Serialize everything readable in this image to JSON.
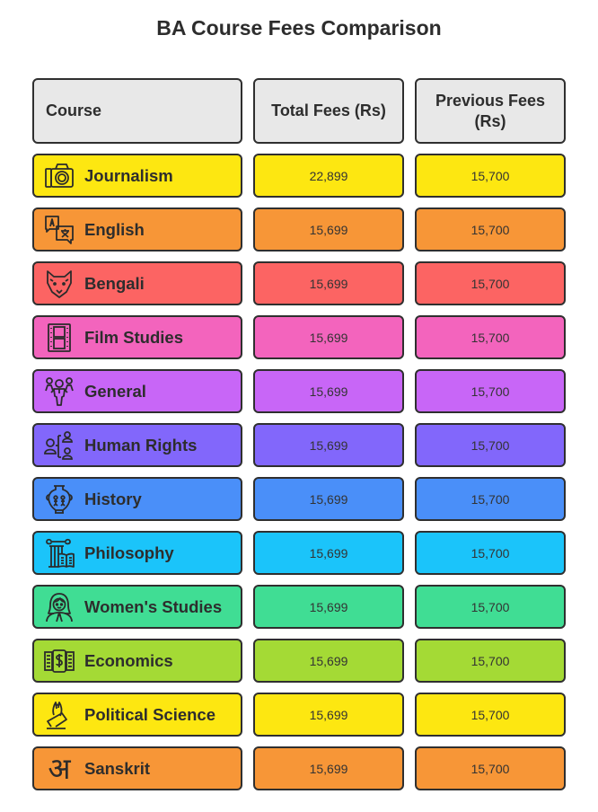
{
  "title": "BA Course Fees Comparison",
  "header": {
    "course": "Course",
    "total_fees": "Total Fees (Rs)",
    "previous_fees": "Previous Fees (Rs)"
  },
  "rows": [
    {
      "course": "Journalism",
      "icon": "camera-icon",
      "total_fees": "22,899",
      "previous_fees": "15,700",
      "color": "#fde711"
    },
    {
      "course": "English",
      "icon": "translate-icon",
      "total_fees": "15,699",
      "previous_fees": "15,700",
      "color": "#f79637"
    },
    {
      "course": "Bengali",
      "icon": "tiger-icon",
      "total_fees": "15,699",
      "previous_fees": "15,700",
      "color": "#fc6463"
    },
    {
      "course": "Film Studies",
      "icon": "film-strip-icon",
      "total_fees": "15,699",
      "previous_fees": "15,700",
      "color": "#f364bd"
    },
    {
      "course": "General",
      "icon": "group-icon",
      "total_fees": "15,699",
      "previous_fees": "15,700",
      "color": "#c866f7"
    },
    {
      "course": "Human Rights",
      "icon": "people-network-icon",
      "total_fees": "15,699",
      "previous_fees": "15,700",
      "color": "#8267fb"
    },
    {
      "course": "History",
      "icon": "amphora-icon",
      "total_fees": "15,699",
      "previous_fees": "15,700",
      "color": "#4a8ff9"
    },
    {
      "course": "Philosophy",
      "icon": "column-book-icon",
      "total_fees": "15,699",
      "previous_fees": "15,700",
      "color": "#1bc4fa"
    },
    {
      "course": "Women's Studies",
      "icon": "woman-icon",
      "total_fees": "15,699",
      "previous_fees": "15,700",
      "color": "#40dd94"
    },
    {
      "course": "Economics",
      "icon": "money-icon",
      "total_fees": "15,699",
      "previous_fees": "15,700",
      "color": "#a4da35"
    },
    {
      "course": "Political Science",
      "icon": "ballot-vote-icon",
      "total_fees": "15,699",
      "previous_fees": "15,700",
      "color": "#fde711"
    },
    {
      "course": "Sanskrit",
      "icon": "devanagari-a-icon",
      "total_fees": "15,699",
      "previous_fees": "15,700",
      "color": "#f79637",
      "glyph": "अ"
    }
  ],
  "chart_data": {
    "type": "table",
    "title": "BA Course Fees Comparison",
    "columns": [
      "Course",
      "Total Fees (Rs)",
      "Previous Fees (Rs)"
    ],
    "categories": [
      "Journalism",
      "English",
      "Bengali",
      "Film Studies",
      "General",
      "Human Rights",
      "History",
      "Philosophy",
      "Women's Studies",
      "Economics",
      "Political Science",
      "Sanskrit"
    ],
    "series": [
      {
        "name": "Total Fees (Rs)",
        "values": [
          22899,
          15699,
          15699,
          15699,
          15699,
          15699,
          15699,
          15699,
          15699,
          15699,
          15699,
          15699
        ]
      },
      {
        "name": "Previous Fees (Rs)",
        "values": [
          15700,
          15700,
          15700,
          15700,
          15700,
          15700,
          15700,
          15700,
          15700,
          15700,
          15700,
          15700
        ]
      }
    ]
  }
}
